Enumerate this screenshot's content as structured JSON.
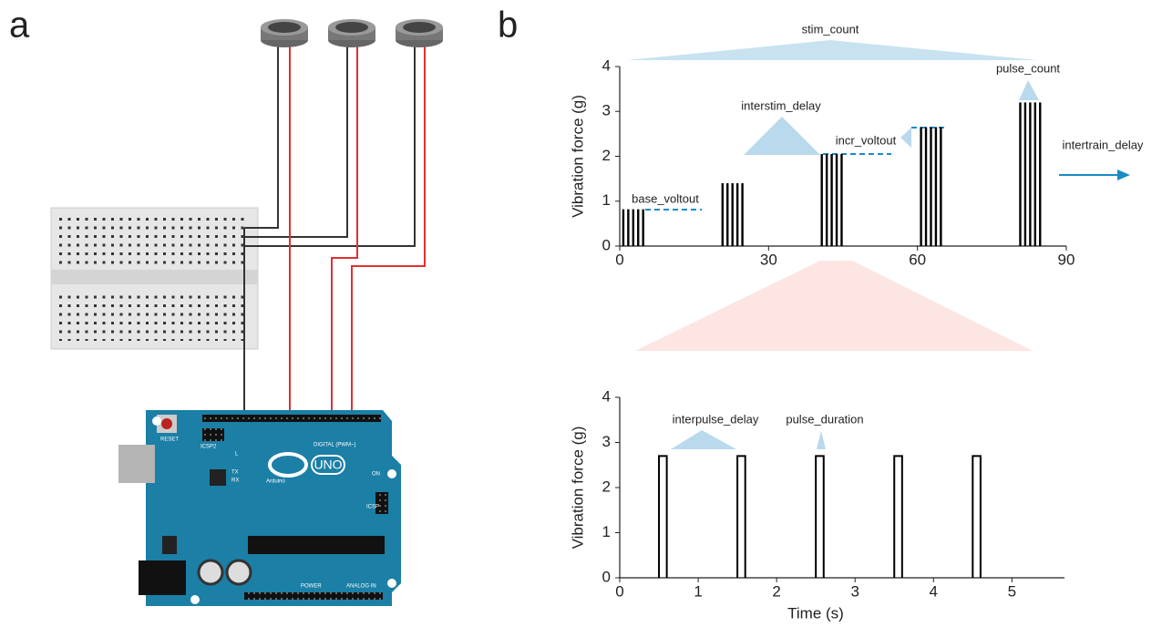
{
  "panels": [
    "a",
    "b"
  ],
  "circuit": {
    "board_labels": [
      "RESET",
      "ICSP2",
      "Arduino",
      "UNO",
      "DIGITAL (PWM~)",
      "ANALOG IN",
      "POWER",
      "ICSP",
      "ON",
      "L",
      "TX",
      "RX"
    ]
  },
  "chart_data": [
    {
      "type": "pulse-trains",
      "ylabel": "Vibration force (g)",
      "x": [
        0,
        20,
        40,
        60,
        80
      ],
      "values": [
        0.82,
        1.4,
        2.05,
        2.65,
        3.2
      ],
      "color": "#000000",
      "xlim": [
        0,
        90
      ],
      "xticks": [
        0,
        30,
        60,
        90
      ],
      "ylim": [
        0,
        4
      ],
      "yticks": [
        0,
        1,
        2,
        3,
        4
      ],
      "annotations": [
        "stim_count",
        "interstim_delay",
        "base_voltout",
        "incr_voltout",
        "pulse_count",
        "intertrain_delay"
      ]
    },
    {
      "type": "pulses",
      "xlabel": "Time (s)",
      "ylabel": "Vibration force (g)",
      "x": [
        0.5,
        1.5,
        2.5,
        3.5,
        4.5
      ],
      "values": [
        2.7,
        2.7,
        2.7,
        2.7,
        2.7
      ],
      "pulse_duration": 0.1,
      "color": "#000000",
      "xlim": [
        0,
        5.67
      ],
      "xticks": [
        0,
        1,
        2,
        3,
        4,
        5
      ],
      "ylim": [
        0,
        4
      ],
      "yticks": [
        0,
        1,
        2,
        3,
        4
      ],
      "annotations": [
        "interpulse_delay",
        "pulse_duration"
      ]
    }
  ]
}
